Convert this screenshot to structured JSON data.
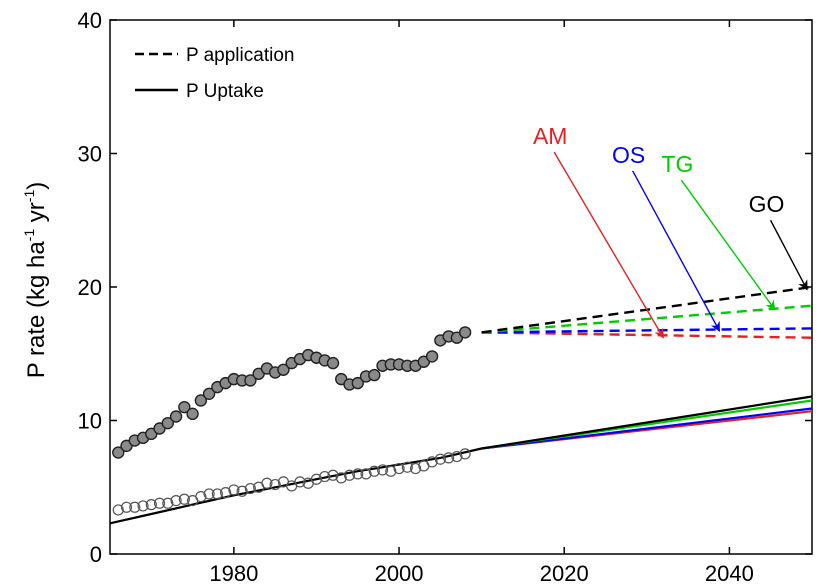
{
  "chart_data": {
    "type": "line",
    "xlim": [
      1965,
      2050
    ],
    "ylim": [
      0,
      40
    ],
    "x_ticks": [
      1980,
      2000,
      2020,
      2040
    ],
    "y_ticks": [
      0,
      10,
      20,
      30,
      40
    ],
    "ylabel": {
      "main": "P rate (kg ha",
      "sup1": "-1",
      "mid": " yr",
      "sup2": "-1",
      "end": ")"
    },
    "grid": false,
    "legend": {
      "placement": "top-left",
      "entries": [
        {
          "label": "P application",
          "style": "dashed",
          "color": "#000000"
        },
        {
          "label": "P Uptake",
          "style": "solid",
          "color": "#000000"
        }
      ]
    },
    "observed_application": {
      "x": [
        1966,
        1967,
        1968,
        1969,
        1970,
        1971,
        1972,
        1973,
        1974,
        1975,
        1976,
        1977,
        1978,
        1979,
        1980,
        1981,
        1982,
        1983,
        1984,
        1985,
        1986,
        1987,
        1988,
        1989,
        1990,
        1991,
        1992,
        1993,
        1994,
        1995,
        1996,
        1997,
        1998,
        1999,
        2000,
        2001,
        2002,
        2003,
        2004,
        2005,
        2006,
        2007,
        2008
      ],
      "y": [
        7.6,
        8.1,
        8.5,
        8.7,
        9.0,
        9.4,
        9.8,
        10.3,
        11.0,
        10.5,
        11.5,
        12.0,
        12.5,
        12.8,
        13.1,
        13.0,
        13.0,
        13.5,
        13.9,
        13.6,
        13.8,
        14.3,
        14.6,
        14.9,
        14.7,
        14.5,
        14.3,
        13.1,
        12.7,
        12.8,
        13.3,
        13.4,
        14.1,
        14.2,
        14.2,
        14.1,
        14.1,
        14.4,
        14.8,
        16.0,
        16.3,
        16.2,
        16.6
      ]
    },
    "observed_uptake": {
      "x": [
        1966,
        1967,
        1968,
        1969,
        1970,
        1971,
        1972,
        1973,
        1974,
        1975,
        1976,
        1977,
        1978,
        1979,
        1980,
        1981,
        1982,
        1983,
        1984,
        1985,
        1986,
        1987,
        1988,
        1989,
        1990,
        1991,
        1992,
        1993,
        1994,
        1995,
        1996,
        1997,
        1998,
        1999,
        2000,
        2001,
        2002,
        2003,
        2004,
        2005,
        2006,
        2007,
        2008
      ],
      "y": [
        3.3,
        3.5,
        3.5,
        3.6,
        3.7,
        3.8,
        3.8,
        4.0,
        4.1,
        4.0,
        4.3,
        4.5,
        4.5,
        4.6,
        4.8,
        4.7,
        4.9,
        5.0,
        5.3,
        5.2,
        5.4,
        5.1,
        5.4,
        5.3,
        5.6,
        5.8,
        5.9,
        5.7,
        5.9,
        6.0,
        6.0,
        6.2,
        6.3,
        6.2,
        6.4,
        6.5,
        6.4,
        6.6,
        6.9,
        7.1,
        7.2,
        7.3,
        7.5
      ]
    },
    "fitted_uptake": {
      "x": [
        1965,
        1970,
        1975,
        1980,
        1985,
        1990,
        1995,
        2000,
        2005,
        2010
      ],
      "y": [
        2.3,
        3.0,
        3.7,
        4.4,
        5.0,
        5.6,
        6.2,
        6.7,
        7.2,
        7.9
      ]
    },
    "scenarios": [
      {
        "name": "GO",
        "color": "#000000",
        "application": {
          "x": [
            2010,
            2050
          ],
          "y": [
            16.6,
            20.0
          ]
        },
        "uptake": {
          "x": [
            2010,
            2050
          ],
          "y": [
            7.9,
            11.8
          ]
        }
      },
      {
        "name": "TG",
        "color": "#00cc00",
        "application": {
          "x": [
            2010,
            2050
          ],
          "y": [
            16.6,
            18.6
          ]
        },
        "uptake": {
          "x": [
            2010,
            2050
          ],
          "y": [
            7.9,
            11.5
          ]
        }
      },
      {
        "name": "OS",
        "color": "#0000ff",
        "application": {
          "x": [
            2010,
            2050
          ],
          "y": [
            16.6,
            16.9
          ]
        },
        "uptake": {
          "x": [
            2010,
            2050
          ],
          "y": [
            7.9,
            10.9
          ]
        }
      },
      {
        "name": "AM",
        "color": "#e52222",
        "application": {
          "x": [
            2010,
            2050
          ],
          "y": [
            16.6,
            16.2
          ]
        },
        "uptake": {
          "x": [
            2010,
            2050
          ],
          "y": [
            7.9,
            10.7
          ]
        }
      }
    ],
    "annotations": [
      {
        "text": "AM",
        "color": "#e52222",
        "label_at": {
          "x": 2018.3,
          "y": 30.7
        },
        "arrow_to": {
          "x": 2032,
          "y": 16.2
        }
      },
      {
        "text": "OS",
        "color": "#0000ff",
        "label_at": {
          "x": 2027.8,
          "y": 29.3
        },
        "arrow_to": {
          "x": 2038.8,
          "y": 16.7
        }
      },
      {
        "text": "TG",
        "color": "#00cc00",
        "label_at": {
          "x": 2033.7,
          "y": 28.6
        },
        "arrow_to": {
          "x": 2045.5,
          "y": 18.3
        }
      },
      {
        "text": "GO",
        "color": "#000000",
        "label_at": {
          "x": 2044.5,
          "y": 25.6
        },
        "arrow_to": {
          "x": 2049.4,
          "y": 19.8
        }
      }
    ]
  }
}
